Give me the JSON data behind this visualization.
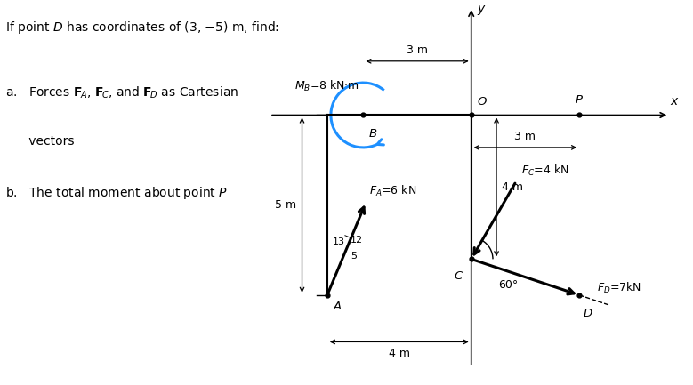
{
  "bg_color": "#ffffff",
  "fig_width": 7.79,
  "fig_height": 4.33,
  "dpi": 100,
  "black": "#000000",
  "blue": "#1E90FF",
  "O": [
    0,
    0
  ],
  "B": [
    -3,
    0
  ],
  "A": [
    -4,
    -5
  ],
  "C": [
    0,
    -4
  ],
  "D": [
    3,
    -5
  ],
  "P": [
    3,
    0
  ],
  "xmin": -5.8,
  "xmax": 5.8,
  "ymin": -7.5,
  "ymax": 3.2,
  "text_line1": "If point $D$ has coordinates of (3, −5) m, find:",
  "text_a1": "a.   Forces $\\mathbf{F}_{\\!A}$, $\\mathbf{F}_{\\!C}$, and $\\mathbf{F}_{\\!D}$ as Cartesian",
  "text_a2": "      vectors",
  "text_b": "b.   The total moment about point $P$",
  "label_MB": "$M_B$=8 kN·m",
  "label_FA": "$F_A$=6 kN",
  "label_FC": "$F_C$=4 kN",
  "label_FD": "$F_D$=7kN",
  "label_3m_top": "3 m",
  "label_3m_right": "3 m",
  "label_4m_bot": "4 m",
  "label_4m_vert": "4 m",
  "label_5m": "5 m",
  "label_60": "60°",
  "label_13": "13",
  "label_12": "12",
  "label_5": "5",
  "label_O": "$O$",
  "label_B": "$B$",
  "label_A": "$A$",
  "label_C": "$C$",
  "label_D": "$D$",
  "label_P": "$P$",
  "label_x": "$x$",
  "label_y": "$y$"
}
